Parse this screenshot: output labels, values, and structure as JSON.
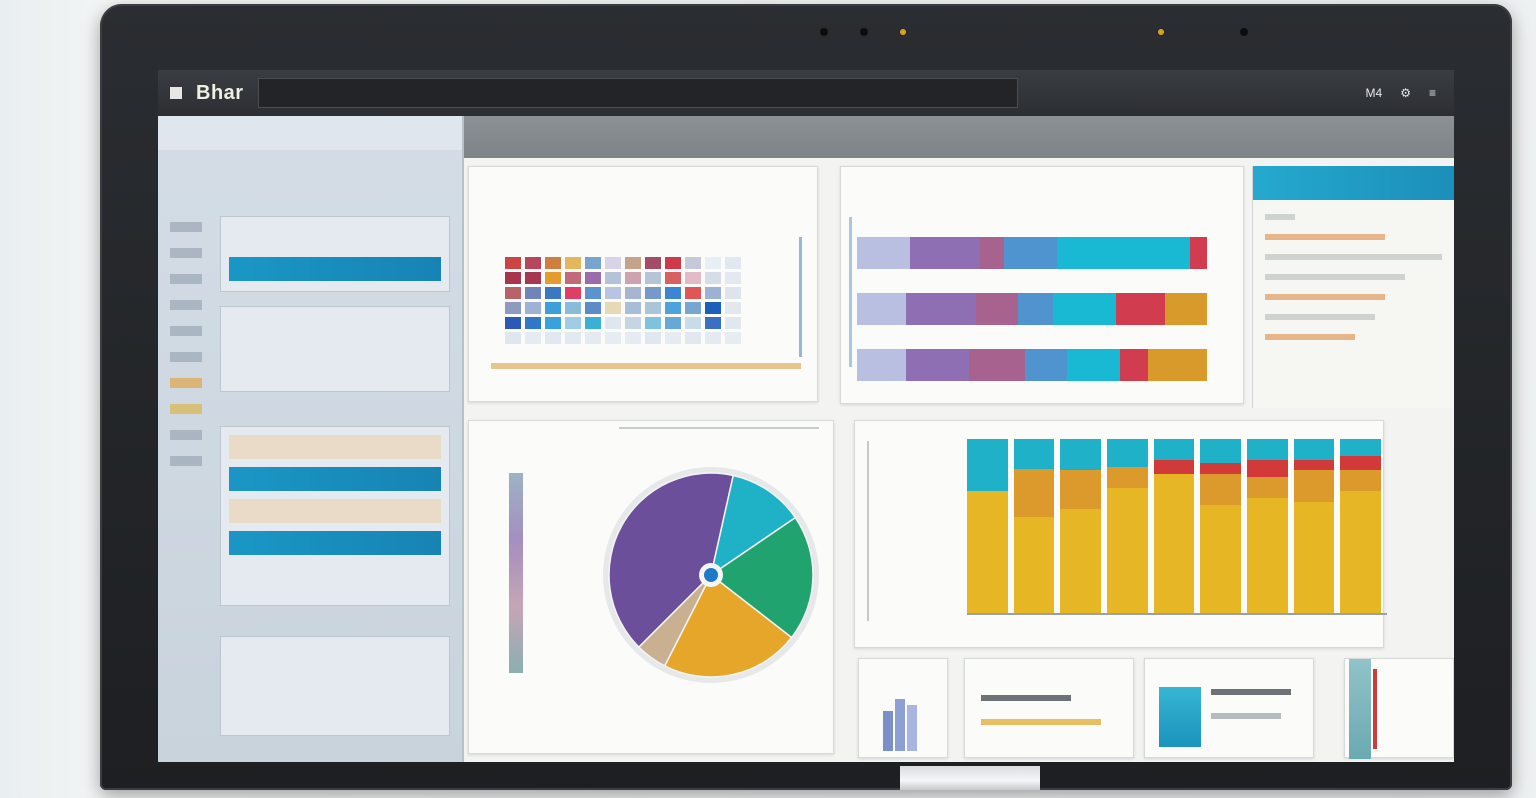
{
  "topbar": {
    "brand_small": "",
    "brand": "Bhar",
    "url": "",
    "right_items": [
      "M4",
      "⚙",
      "≡"
    ]
  },
  "sidebar": {
    "header": "",
    "subheader": "",
    "groups": [
      {
        "items": [
          {
            "label": "",
            "active": false
          },
          {
            "label": "",
            "active": true
          }
        ]
      },
      {
        "items": [
          {
            "label": "",
            "active": false
          },
          {
            "label": "",
            "active": false
          }
        ]
      },
      {
        "items": [
          {
            "label": "",
            "tan": true
          },
          {
            "label": "",
            "active": true
          },
          {
            "label": "",
            "tan": true
          },
          {
            "label": "",
            "active": true
          }
        ]
      },
      {
        "items": [
          {
            "label": "",
            "active": false
          },
          {
            "label": "",
            "active": false
          }
        ]
      }
    ]
  },
  "content_head": {
    "left": "",
    "right": ""
  },
  "cards": {
    "heatmap_title": "",
    "hbar_title": "",
    "pie_title": "",
    "column_title": "",
    "right_panel_title": ""
  },
  "colors": {
    "accent": "#1a97c6",
    "purple": "#6a4f9a",
    "yellow": "#e3b21c",
    "orange": "#d79b2a",
    "red": "#cf3a3a",
    "teal": "#1fb0c9",
    "green": "#1f9a6a",
    "tan": "#c9b38f"
  },
  "chart_data": [
    {
      "type": "heatmap",
      "rows": 6,
      "cols": 12,
      "cells": [
        [
          "#cc4444",
          "#b8455e",
          "#d07d3f",
          "#e5b65b",
          "#7aa4d0",
          "#d9d3e8",
          "#c5a28a",
          "#a54b66",
          "#cf3949",
          "#c6c9da",
          "#e8eef4",
          "#e2e8f0"
        ],
        [
          "#a8354b",
          "#a43752",
          "#e49c2f",
          "#c06a7a",
          "#9a6ca9",
          "#b5c3d8",
          "#cda3b0",
          "#b6c4d8",
          "#d86060",
          "#e2bcc4",
          "#d7dde6",
          "#e3e9ef"
        ],
        [
          "#b8626a",
          "#6f84b8",
          "#3b78c4",
          "#df3f65",
          "#5c92d0",
          "#b9c3e4",
          "#a8b5d0",
          "#7799c9",
          "#3a86d5",
          "#e05555",
          "#9bb2d5",
          "#dde4ec"
        ],
        [
          "#8f9abf",
          "#9db3d3",
          "#3c9fd8",
          "#8abbd8",
          "#5d8bc8",
          "#e7d9b3",
          "#a8bed6",
          "#aac4d8",
          "#4ea4da",
          "#78a6cf",
          "#1b5fb8",
          "#e3e8ee"
        ],
        [
          "#2c58b8",
          "#2f78c7",
          "#3aa2da",
          "#9fcde6",
          "#3ab0d7",
          "#dfe6ee",
          "#c7d5e3",
          "#7ec2e0",
          "#66a9d9",
          "#c8dbe9",
          "#3b6fc0",
          "#e1e7ee"
        ],
        [
          "#dfe6ee",
          "#e5ebf1",
          "#e1e8ef",
          "#e3e9f0",
          "#e4eaf0",
          "#e7ecf2",
          "#e6ebf1",
          "#e1e7ee",
          "#e5ebf1",
          "#e2e8ef",
          "#e4eaf0",
          "#e7ecf2"
        ]
      ]
    },
    {
      "type": "bar",
      "orientation": "horizontal",
      "stacked": true,
      "categories": [
        "",
        "",
        ""
      ],
      "series": [
        {
          "color": "#b8bfe0",
          "values": [
            15,
            14,
            14
          ]
        },
        {
          "color": "#8e6fb4",
          "values": [
            20,
            20,
            18
          ]
        },
        {
          "color": "#a8628e",
          "values": [
            7,
            12,
            16
          ]
        },
        {
          "color": "#4f94cf",
          "values": [
            15,
            10,
            12
          ]
        },
        {
          "color": "#19b9d4",
          "values": [
            38,
            18,
            15
          ]
        },
        {
          "color": "#d13c4e",
          "values": [
            5,
            14,
            8
          ]
        },
        {
          "color": "#d89b2b",
          "values": [
            0,
            12,
            17
          ]
        }
      ]
    },
    {
      "type": "pie",
      "values": [
        41,
        12,
        20,
        22,
        5
      ],
      "colors": [
        "#6b4f9b",
        "#1fb1c6",
        "#20a36e",
        "#e6a62a",
        "#c9b090"
      ]
    },
    {
      "type": "bar",
      "orientation": "vertical",
      "stacked": true,
      "categories": [
        "",
        "",
        "",
        "",
        "",
        "",
        "",
        "",
        ""
      ],
      "series": [
        {
          "color": "#e6b624",
          "values": [
            70,
            55,
            60,
            72,
            80,
            62,
            66,
            64,
            70
          ]
        },
        {
          "color": "#dd9a2c",
          "values": [
            0,
            28,
            22,
            12,
            0,
            18,
            12,
            18,
            12
          ]
        },
        {
          "color": "#d23a3a",
          "values": [
            0,
            0,
            0,
            0,
            8,
            6,
            10,
            6,
            8
          ]
        },
        {
          "color": "#1fb1c8",
          "values": [
            30,
            17,
            18,
            16,
            12,
            14,
            12,
            12,
            10
          ]
        }
      ],
      "ylim": [
        0,
        100
      ]
    }
  ]
}
